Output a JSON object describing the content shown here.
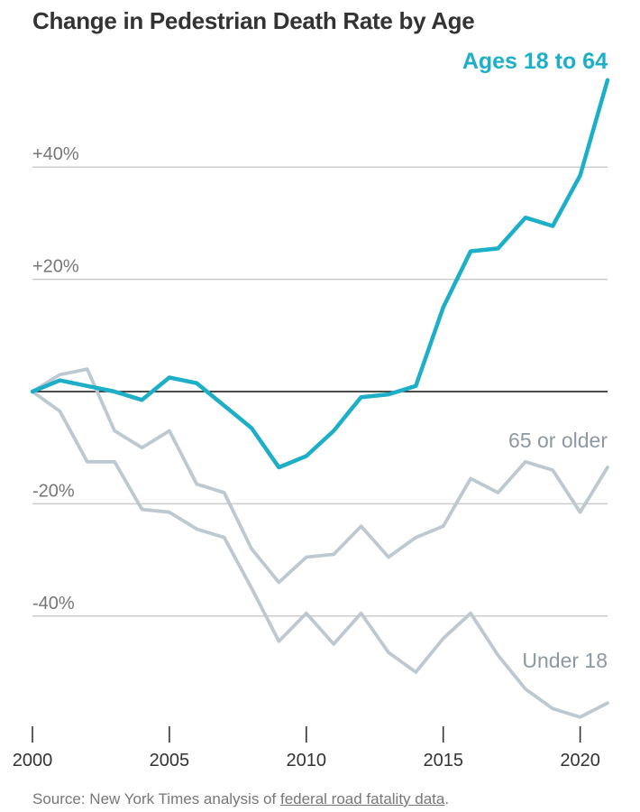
{
  "chart_data": {
    "type": "line",
    "title": "Change in Pedestrian Death Rate by Age",
    "xlabel": "",
    "ylabel": "",
    "xlim": [
      2000,
      2021
    ],
    "ylim": [
      -60,
      55
    ],
    "x_ticks": [
      {
        "value": 2000,
        "label": "2000"
      },
      {
        "value": 2005,
        "label": "2005"
      },
      {
        "value": 2010,
        "label": "2010"
      },
      {
        "value": 2015,
        "label": "2015"
      },
      {
        "value": 2020,
        "label": "2020"
      }
    ],
    "y_ticks": [
      {
        "value": 40,
        "label": "+40%"
      },
      {
        "value": 20,
        "label": "+20%"
      },
      {
        "value": -20,
        "label": "-20%"
      },
      {
        "value": -40,
        "label": "-40%"
      }
    ],
    "x": [
      2000,
      2001,
      2002,
      2003,
      2004,
      2005,
      2006,
      2007,
      2008,
      2009,
      2010,
      2011,
      2012,
      2013,
      2014,
      2015,
      2016,
      2017,
      2018,
      2019,
      2020,
      2021
    ],
    "series": [
      {
        "name": "Ages 18 to 64",
        "color": "#1cafc7",
        "emphasis": true,
        "values": [
          0,
          2,
          1,
          0,
          -1.5,
          2.5,
          1.5,
          -2.5,
          -6.5,
          -13.5,
          -11.5,
          -7,
          -1,
          -0.5,
          1,
          15,
          25,
          25.5,
          31,
          29.5,
          38.5,
          55.5
        ]
      },
      {
        "name": "65 or older",
        "color": "#bdc9d1",
        "emphasis": false,
        "values": [
          0,
          3,
          4,
          -7,
          -10,
          -7,
          -16.5,
          -18,
          -28,
          -34,
          -29.5,
          -29,
          -24,
          -29.5,
          -26,
          -24,
          -15.5,
          -18,
          -12.5,
          -14,
          -21.5,
          -13.5
        ]
      },
      {
        "name": "Under 18",
        "color": "#bdc9d1",
        "emphasis": false,
        "values": [
          0,
          -3.5,
          -12.5,
          -12.5,
          -21,
          -21.5,
          -24.5,
          -26,
          -35,
          -44.5,
          -39.5,
          -45,
          -39.5,
          -46.5,
          -50,
          -44,
          -39.5,
          -47,
          -53,
          -56.5,
          -58,
          -55.5
        ]
      }
    ]
  },
  "source": {
    "prefix": "Source: New York Times analysis of ",
    "link_text": "federal road fatality data",
    "suffix": "."
  }
}
